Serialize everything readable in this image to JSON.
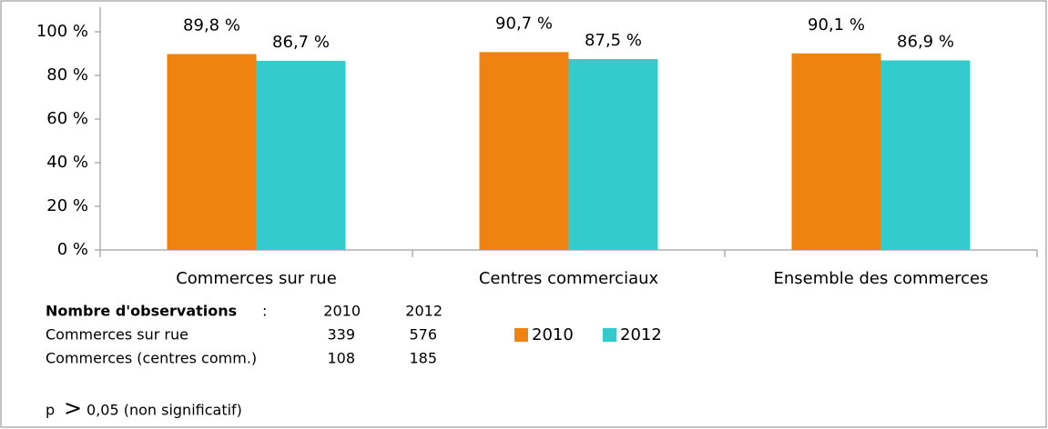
{
  "chart_data": {
    "type": "bar",
    "categories": [
      "Commerces sur rue",
      "Centres commerciaux",
      "Ensemble des commerces"
    ],
    "series": [
      {
        "name": "2010",
        "color": "#f0820f",
        "values": [
          89.8,
          90.7,
          90.1
        ],
        "value_labels": [
          "89,8 %",
          "90,7 %",
          "90,1 %"
        ]
      },
      {
        "name": "2012",
        "color": "#33cccc",
        "values": [
          86.7,
          87.5,
          86.9
        ],
        "value_labels": [
          "86,7 %",
          "87,5 %",
          "86,9 %"
        ]
      }
    ],
    "ylim": [
      0,
      100
    ],
    "yticks": [
      {
        "value": 0,
        "label": "0 %"
      },
      {
        "value": 20,
        "label": "20 %"
      },
      {
        "value": 40,
        "label": "40 %"
      },
      {
        "value": 60,
        "label": "60 %"
      },
      {
        "value": 80,
        "label": "80 %"
      },
      {
        "value": 100,
        "label": "100 %"
      }
    ],
    "grid": false,
    "observations": {
      "label": "Nombre d'observations",
      "separator": ":",
      "columns": [
        "2010",
        "2012"
      ],
      "rows": [
        {
          "name": "Commerces sur rue",
          "values": [
            339,
            576
          ]
        },
        {
          "name": "Commerces (centres comm.)",
          "values": [
            108,
            185
          ]
        }
      ]
    },
    "footnote": [
      "p",
      ">",
      "0,05 (non significatif)"
    ]
  }
}
